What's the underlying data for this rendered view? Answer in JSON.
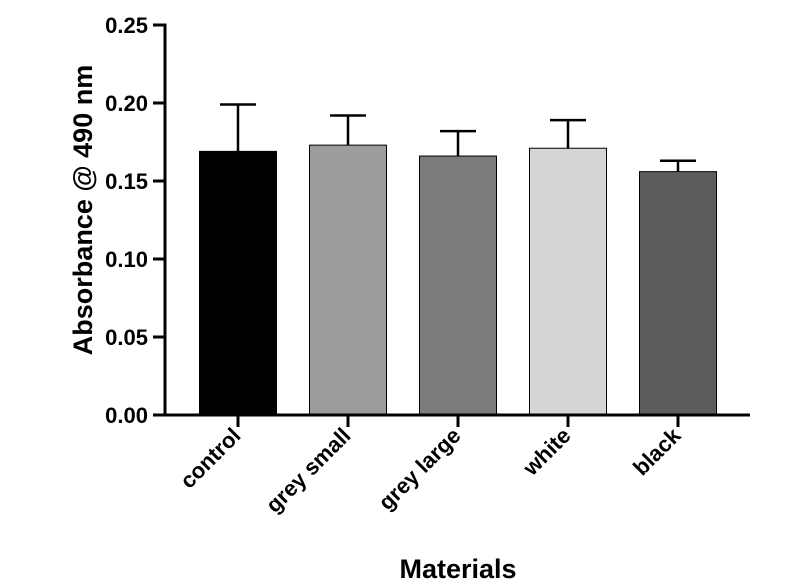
{
  "chart_data": {
    "type": "bar",
    "title": "",
    "xlabel": "Materials",
    "ylabel": "Absorbance @ 490 nm",
    "ylim": [
      0,
      0.25
    ],
    "yticks": [
      "0.00",
      "0.05",
      "0.10",
      "0.15",
      "0.20",
      "0.25"
    ],
    "categories": [
      "control",
      "grey small",
      "grey large",
      "white",
      "black"
    ],
    "values": [
      0.169,
      0.173,
      0.166,
      0.171,
      0.156
    ],
    "errors": [
      0.03,
      0.019,
      0.016,
      0.018,
      0.007
    ],
    "colors": [
      "#000000",
      "#9c9c9f",
      "#7b7b7b",
      "#d5d5d5",
      "#5c5c5c"
    ],
    "error_bar": "upper",
    "grid": false,
    "legend": "none"
  }
}
